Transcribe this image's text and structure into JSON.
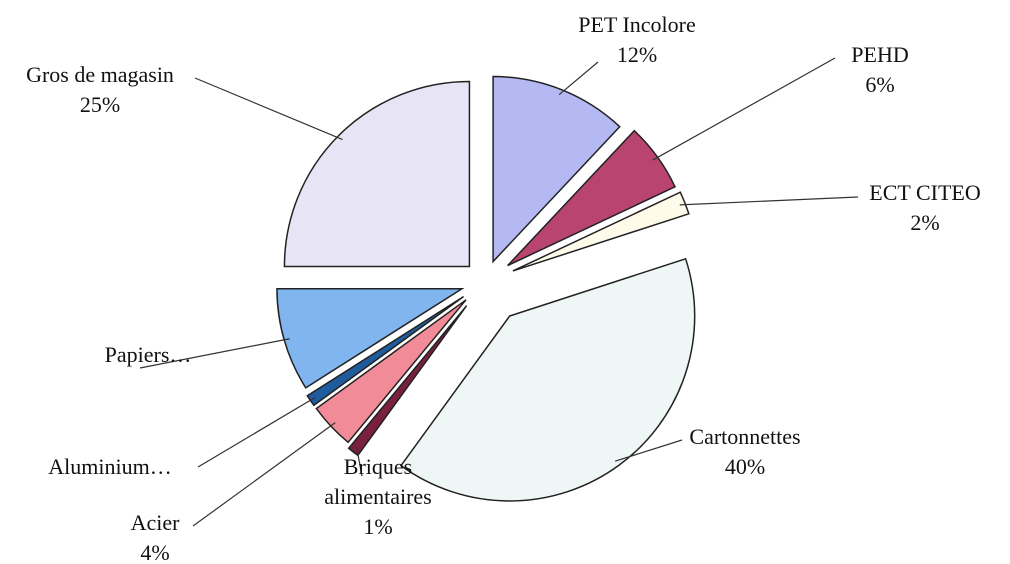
{
  "chart_data": {
    "type": "pie",
    "categories": [
      "PET Incolore",
      "PEHD",
      "ECT CITEO",
      "Cartonnettes",
      "Briques alimentaires",
      "Acier",
      "Aluminium…",
      "Papiers…",
      "Gros de magasin"
    ],
    "values": [
      12,
      6,
      2,
      40,
      1,
      4,
      1,
      9,
      25
    ],
    "value_labels": [
      "12%",
      "6%",
      "2%",
      "40%",
      "1%",
      "4%",
      null,
      null,
      "25%"
    ],
    "colors": [
      "#b4b9f3",
      "#b8446f",
      "#fffbea",
      "#eef6f6",
      "#7a1f3d",
      "#f28b98",
      "#1f5c9e",
      "#80b5f0",
      "#e7e5f5"
    ]
  }
}
